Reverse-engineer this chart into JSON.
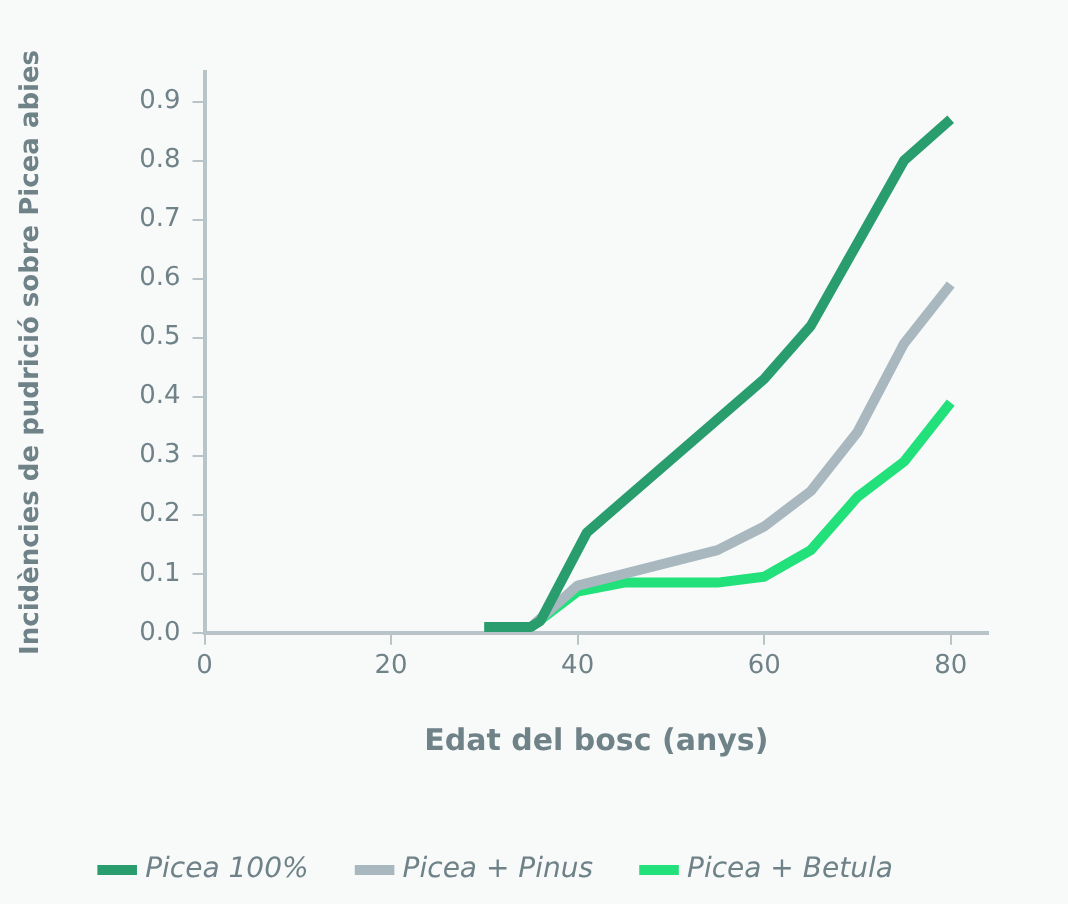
{
  "chart_data": {
    "type": "line",
    "xlabel": "Edat del bosc (anys)",
    "ylabel": "Incidències de pudrició sobre Picea abies",
    "xlim": [
      0,
      84
    ],
    "xticks": [
      0,
      20,
      40,
      60,
      80
    ],
    "ylim": [
      0,
      0.95
    ],
    "yticks": [
      {
        "value": 0,
        "label": "0.0"
      },
      0.1,
      0.2,
      0.3,
      0.4,
      0.5,
      0.6,
      0.7,
      0.8,
      0.9
    ],
    "grid": false,
    "legend": "bottom",
    "marker": "none",
    "line_style": "solid",
    "series": [
      {
        "name": "Picea 100%",
        "color": "#2a9d6f",
        "x": [
          30,
          35,
          36,
          41,
          60,
          65,
          70,
          75,
          80
        ],
        "values": [
          0.01,
          0.01,
          0.02,
          0.17,
          0.43,
          0.52,
          0.66,
          0.8,
          0.87
        ]
      },
      {
        "name": "Picea + Pinus",
        "color": "#a9b7bf",
        "x": [
          30,
          35,
          40,
          55,
          60,
          65,
          70,
          75,
          80
        ],
        "values": [
          0.01,
          0.01,
          0.08,
          0.14,
          0.18,
          0.24,
          0.34,
          0.49,
          0.59
        ]
      },
      {
        "name": "Picea + Betula",
        "color": "#22e07a",
        "x": [
          30,
          35,
          40,
          45,
          55,
          60,
          65,
          70,
          75,
          80
        ],
        "values": [
          0.01,
          0.01,
          0.07,
          0.085,
          0.085,
          0.095,
          0.14,
          0.23,
          0.29,
          0.39
        ]
      }
    ]
  }
}
